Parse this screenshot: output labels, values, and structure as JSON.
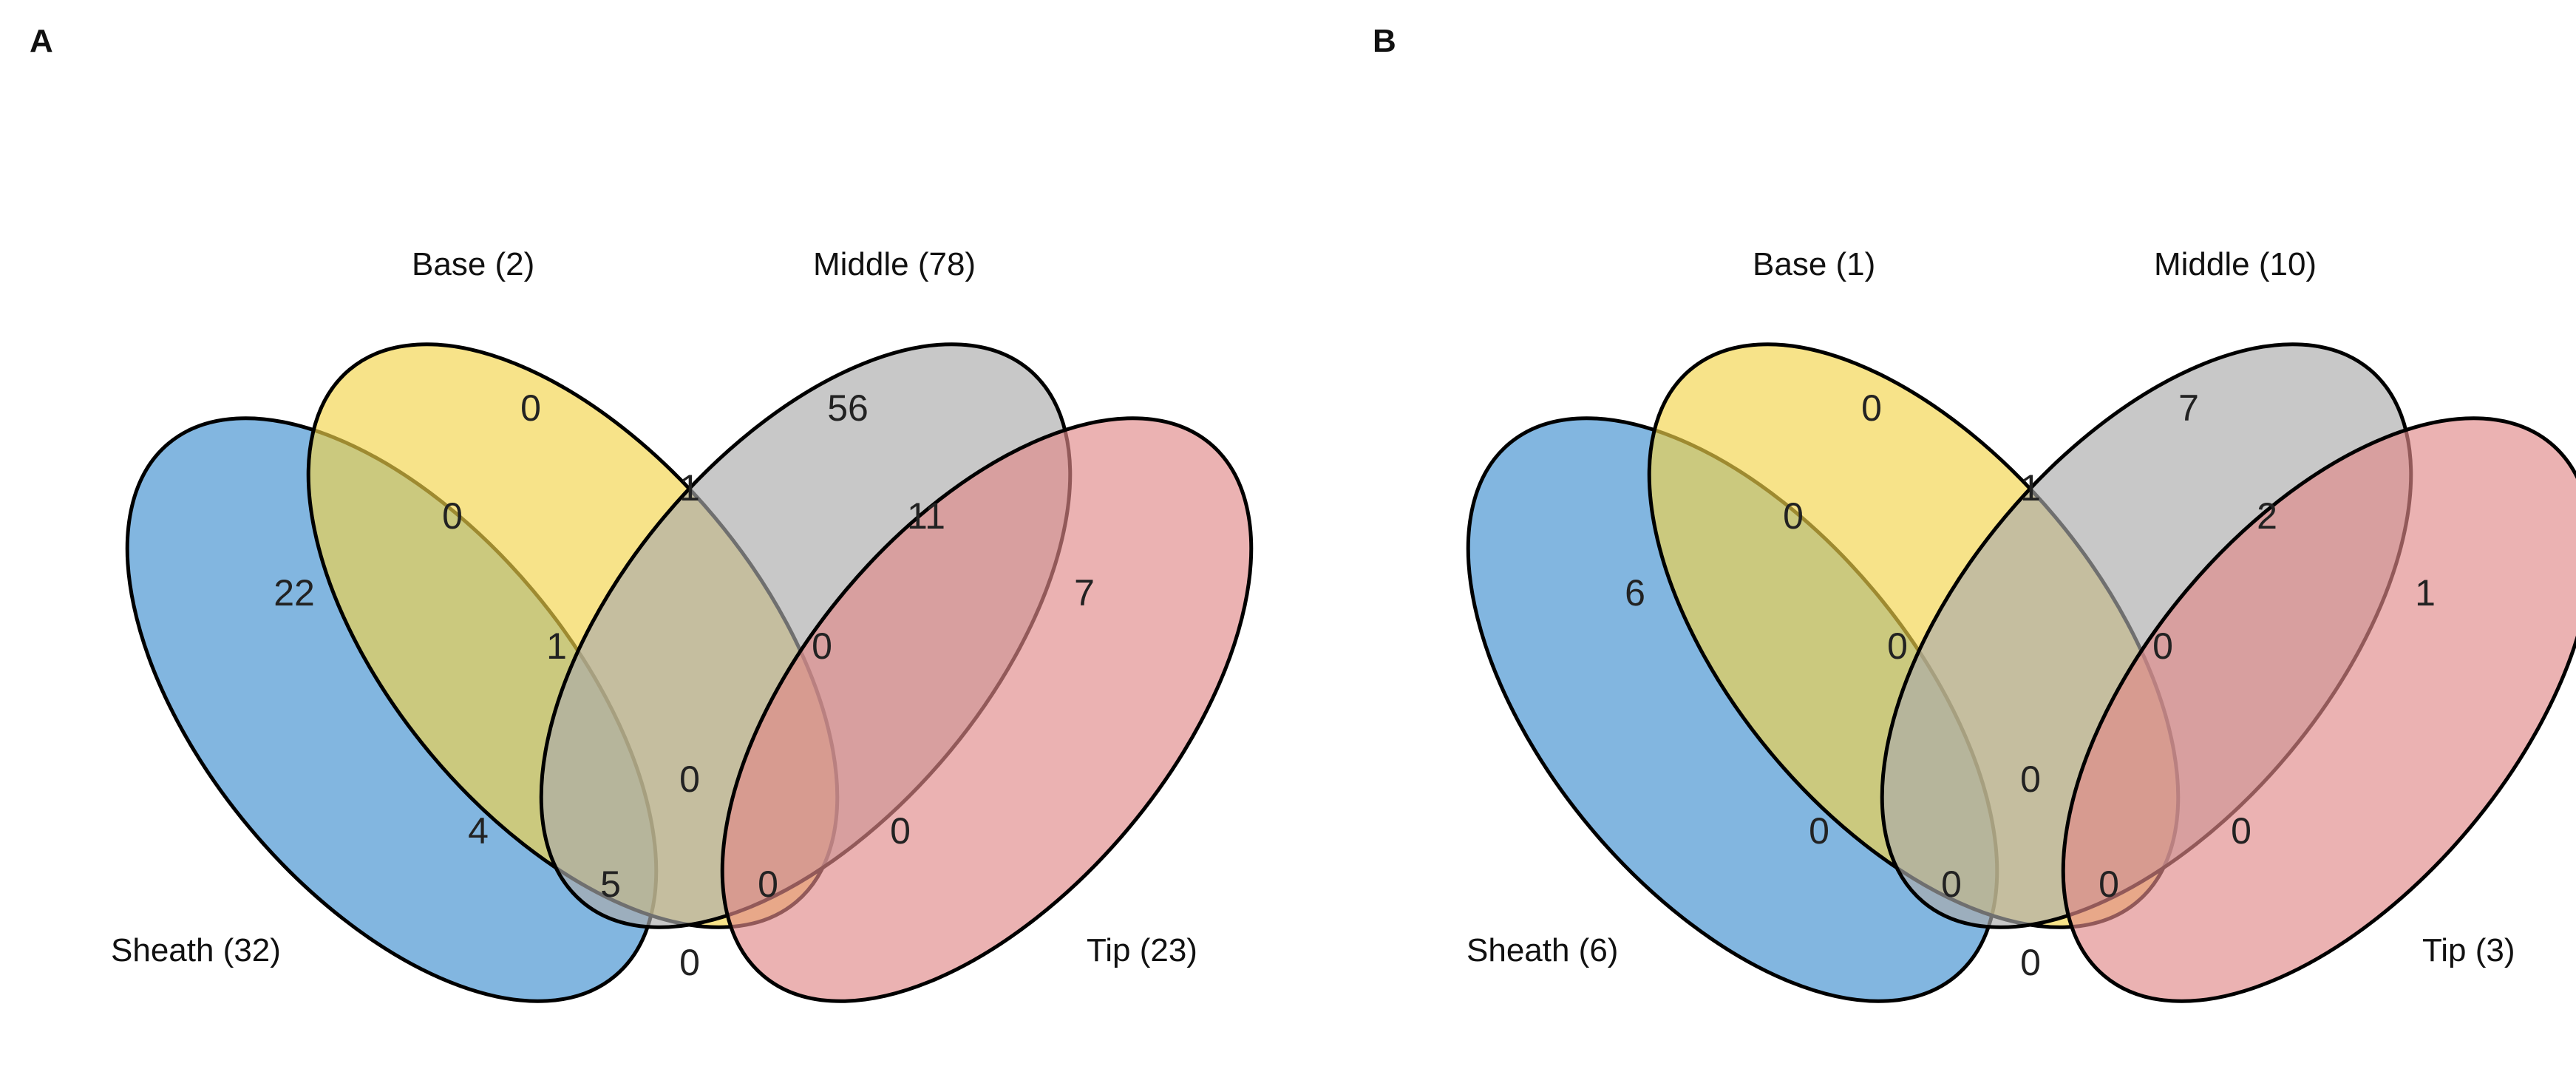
{
  "colors": {
    "Sheath": "#3f8fd0",
    "Base": "#f2d449",
    "Middle": "#ababab",
    "Tip": "#e08888"
  },
  "panels": [
    {
      "letter": "A",
      "set_labels": {
        "Base": "Base (2)",
        "Middle": "Middle (78)",
        "Sheath": "Sheath (32)",
        "Tip": "Tip (23)"
      },
      "regions": {
        "B": "0",
        "M": "56",
        "SB": "0",
        "BM": "1",
        "MT": "11",
        "S": "22",
        "SBM": "1",
        "BMT": "0",
        "T": "7",
        "SBMT": "0",
        "SM": "4",
        "BT": "0",
        "SMT": "5",
        "SBT": "0",
        "ST": "0"
      }
    },
    {
      "letter": "B",
      "set_labels": {
        "Base": "Base (1)",
        "Middle": "Middle (10)",
        "Sheath": "Sheath (6)",
        "Tip": "Tip (3)"
      },
      "regions": {
        "B": "0",
        "M": "7",
        "SB": "0",
        "BM": "1",
        "MT": "2",
        "S": "6",
        "SBM": "0",
        "BMT": "0",
        "T": "1",
        "SBMT": "0",
        "SM": "0",
        "BT": "0",
        "SMT": "0",
        "SBT": "0",
        "ST": "0"
      }
    }
  ]
}
